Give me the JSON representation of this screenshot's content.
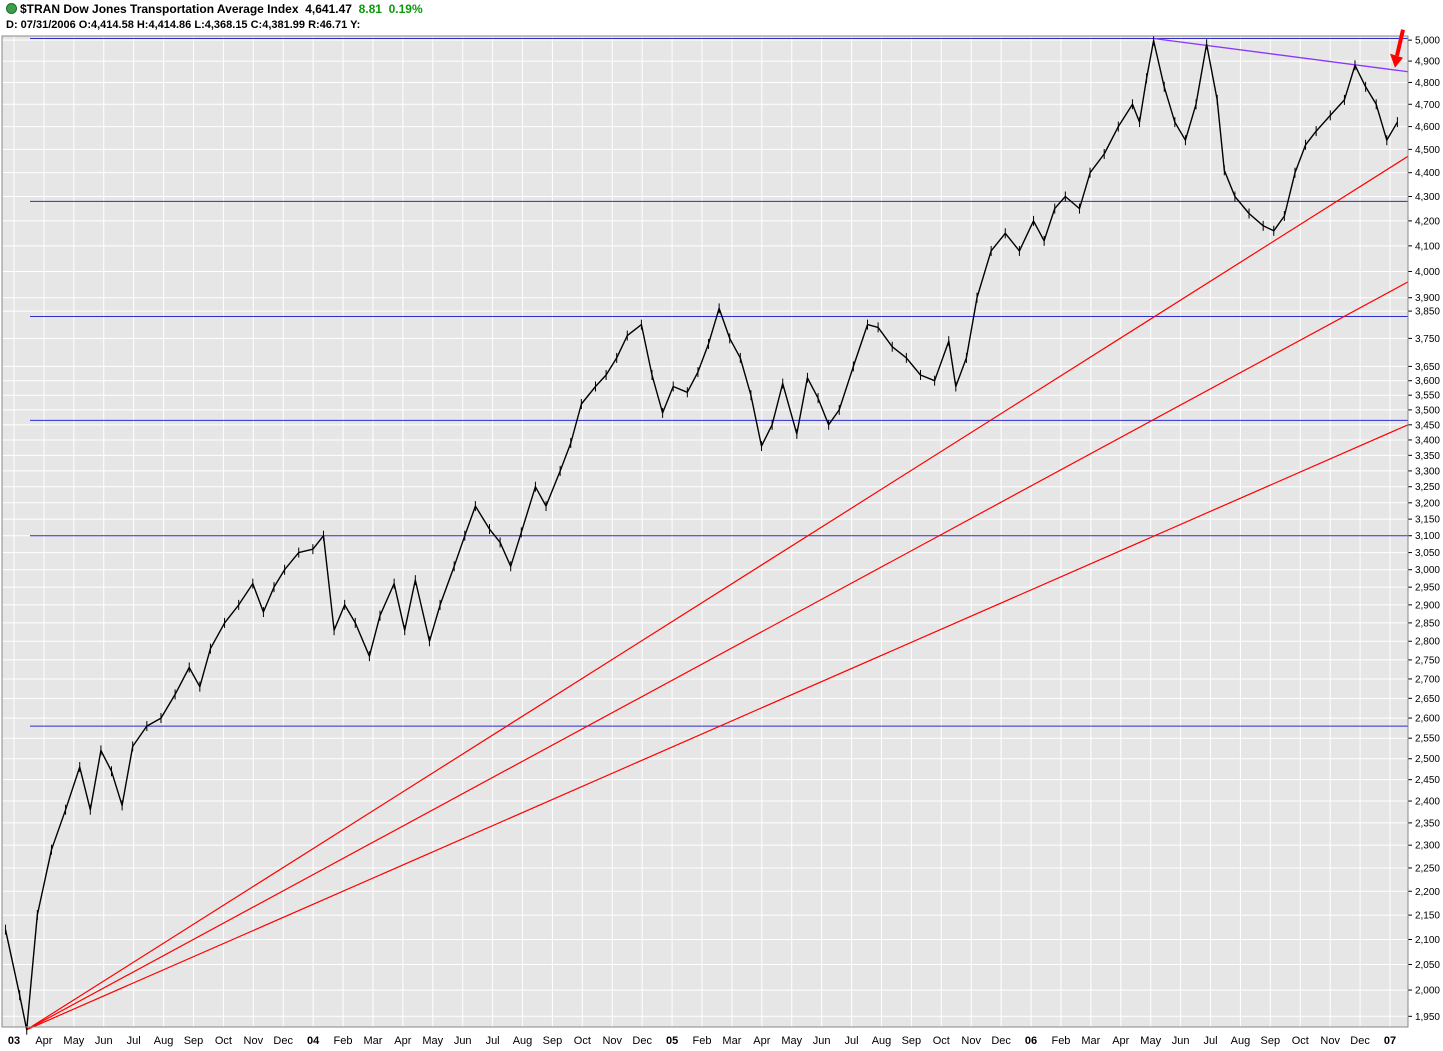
{
  "header": {
    "symbol": "$TRAN",
    "name": "Dow Jones Transportation Average Index",
    "last": "4,641.47",
    "change": "8.81",
    "change_pct": "0.19%",
    "ohlc_line": "D: 07/31/2006 O:4,414.58 H:4,414.86 L:4,368.15 C:4,381.99 R:46.71 Y:"
  },
  "chart_data": {
    "type": "line",
    "scale": "log",
    "ylim": [
      1930,
      5020
    ],
    "yticks": [
      1950,
      2000,
      2050,
      2100,
      2150,
      2200,
      2250,
      2300,
      2350,
      2400,
      2450,
      2500,
      2550,
      2600,
      2650,
      2700,
      2750,
      2800,
      2850,
      2900,
      2950,
      3000,
      3050,
      3100,
      3150,
      3200,
      3250,
      3300,
      3350,
      3400,
      3450,
      3500,
      3550,
      3600,
      3650,
      3750,
      3850,
      3900,
      4000,
      4100,
      4200,
      4300,
      4400,
      4500,
      4600,
      4700,
      4800,
      4900,
      5000
    ],
    "xticks": [
      "03",
      "Apr",
      "May",
      "Jun",
      "Jul",
      "Aug",
      "Sep",
      "Oct",
      "Nov",
      "Dec",
      "04",
      "Feb",
      "Mar",
      "Apr",
      "May",
      "Jun",
      "Jul",
      "Aug",
      "Sep",
      "Oct",
      "Nov",
      "Dec",
      "05",
      "Feb",
      "Mar",
      "Apr",
      "May",
      "Jun",
      "Jul",
      "Aug",
      "Sep",
      "Oct",
      "Nov",
      "Dec",
      "06",
      "Feb",
      "Mar",
      "Apr",
      "May",
      "Jun",
      "Jul",
      "Aug",
      "Sep",
      "Oct",
      "Nov",
      "Dec",
      "07"
    ],
    "xlim": [
      2003.12,
      2007.1
    ],
    "series": [
      {
        "values": [
          [
            2003.13,
            2120
          ],
          [
            2003.17,
            1990
          ],
          [
            2003.19,
            1925
          ],
          [
            2003.22,
            2150
          ],
          [
            2003.26,
            2290
          ],
          [
            2003.3,
            2380
          ],
          [
            2003.34,
            2480
          ],
          [
            2003.37,
            2380
          ],
          [
            2003.4,
            2520
          ],
          [
            2003.43,
            2470
          ],
          [
            2003.46,
            2390
          ],
          [
            2003.49,
            2530
          ],
          [
            2003.53,
            2580
          ],
          [
            2003.57,
            2600
          ],
          [
            2003.61,
            2660
          ],
          [
            2003.65,
            2730
          ],
          [
            2003.68,
            2680
          ],
          [
            2003.71,
            2780
          ],
          [
            2003.75,
            2850
          ],
          [
            2003.79,
            2900
          ],
          [
            2003.83,
            2960
          ],
          [
            2003.86,
            2880
          ],
          [
            2003.89,
            2950
          ],
          [
            2003.92,
            3000
          ],
          [
            2003.96,
            3050
          ],
          [
            2004.0,
            3060
          ],
          [
            2004.03,
            3100
          ],
          [
            2004.06,
            2830
          ],
          [
            2004.09,
            2900
          ],
          [
            2004.12,
            2850
          ],
          [
            2004.16,
            2760
          ],
          [
            2004.19,
            2870
          ],
          [
            2004.23,
            2960
          ],
          [
            2004.26,
            2830
          ],
          [
            2004.29,
            2970
          ],
          [
            2004.33,
            2800
          ],
          [
            2004.36,
            2900
          ],
          [
            2004.4,
            3010
          ],
          [
            2004.43,
            3100
          ],
          [
            2004.46,
            3190
          ],
          [
            2004.5,
            3120
          ],
          [
            2004.53,
            3080
          ],
          [
            2004.56,
            3010
          ],
          [
            2004.59,
            3110
          ],
          [
            2004.63,
            3250
          ],
          [
            2004.66,
            3190
          ],
          [
            2004.7,
            3300
          ],
          [
            2004.73,
            3390
          ],
          [
            2004.76,
            3520
          ],
          [
            2004.8,
            3580
          ],
          [
            2004.83,
            3620
          ],
          [
            2004.86,
            3680
          ],
          [
            2004.89,
            3760
          ],
          [
            2004.93,
            3800
          ],
          [
            2004.96,
            3620
          ],
          [
            2004.99,
            3490
          ],
          [
            2005.02,
            3580
          ],
          [
            2005.06,
            3560
          ],
          [
            2005.09,
            3630
          ],
          [
            2005.12,
            3730
          ],
          [
            2005.15,
            3860
          ],
          [
            2005.18,
            3750
          ],
          [
            2005.21,
            3680
          ],
          [
            2005.24,
            3550
          ],
          [
            2005.27,
            3380
          ],
          [
            2005.3,
            3450
          ],
          [
            2005.33,
            3590
          ],
          [
            2005.37,
            3420
          ],
          [
            2005.4,
            3610
          ],
          [
            2005.43,
            3540
          ],
          [
            2005.46,
            3450
          ],
          [
            2005.49,
            3500
          ],
          [
            2005.53,
            3650
          ],
          [
            2005.57,
            3800
          ],
          [
            2005.6,
            3790
          ],
          [
            2005.64,
            3720
          ],
          [
            2005.68,
            3680
          ],
          [
            2005.72,
            3620
          ],
          [
            2005.76,
            3600
          ],
          [
            2005.8,
            3740
          ],
          [
            2005.82,
            3580
          ],
          [
            2005.85,
            3680
          ],
          [
            2005.88,
            3900
          ],
          [
            2005.92,
            4080
          ],
          [
            2005.96,
            4150
          ],
          [
            2006.0,
            4080
          ],
          [
            2006.04,
            4200
          ],
          [
            2006.07,
            4120
          ],
          [
            2006.1,
            4250
          ],
          [
            2006.13,
            4300
          ],
          [
            2006.17,
            4250
          ],
          [
            2006.2,
            4400
          ],
          [
            2006.24,
            4480
          ],
          [
            2006.28,
            4600
          ],
          [
            2006.32,
            4700
          ],
          [
            2006.34,
            4620
          ],
          [
            2006.36,
            4820
          ],
          [
            2006.38,
            4998
          ],
          [
            2006.41,
            4780
          ],
          [
            2006.44,
            4620
          ],
          [
            2006.47,
            4540
          ],
          [
            2006.5,
            4700
          ],
          [
            2006.53,
            4980
          ],
          [
            2006.56,
            4720
          ],
          [
            2006.58,
            4410
          ],
          [
            2006.61,
            4300
          ],
          [
            2006.65,
            4230
          ],
          [
            2006.69,
            4180
          ],
          [
            2006.72,
            4160
          ],
          [
            2006.75,
            4220
          ],
          [
            2006.78,
            4400
          ],
          [
            2006.81,
            4520
          ],
          [
            2006.84,
            4580
          ],
          [
            2006.88,
            4650
          ],
          [
            2006.92,
            4720
          ],
          [
            2006.95,
            4880
          ],
          [
            2006.98,
            4780
          ],
          [
            2007.01,
            4700
          ],
          [
            2007.04,
            4540
          ],
          [
            2007.07,
            4620
          ]
        ]
      }
    ],
    "horizontal_lines": [
      5008,
      4280,
      3830,
      3465,
      3100,
      2580
    ],
    "trend_lines": [
      {
        "color": "#ff0000",
        "from": [
          2003.19,
          1925
        ],
        "to": [
          2007.1,
          4470
        ]
      },
      {
        "color": "#ff0000",
        "from": [
          2003.19,
          1925
        ],
        "to": [
          2007.1,
          3960
        ]
      },
      {
        "color": "#ff0000",
        "from": [
          2003.19,
          1925
        ],
        "to": [
          2007.1,
          3450
        ]
      },
      {
        "color": "#8a36ff",
        "from": [
          2006.38,
          5008
        ],
        "to": [
          2007.1,
          4850
        ]
      }
    ],
    "colors": {
      "price": "#000000",
      "support": "#2d2dcc",
      "fan": "#ff0000",
      "resistance": "#8a36ff",
      "plot_bg": "#e6e6e6",
      "grid": "#ffffff"
    }
  }
}
